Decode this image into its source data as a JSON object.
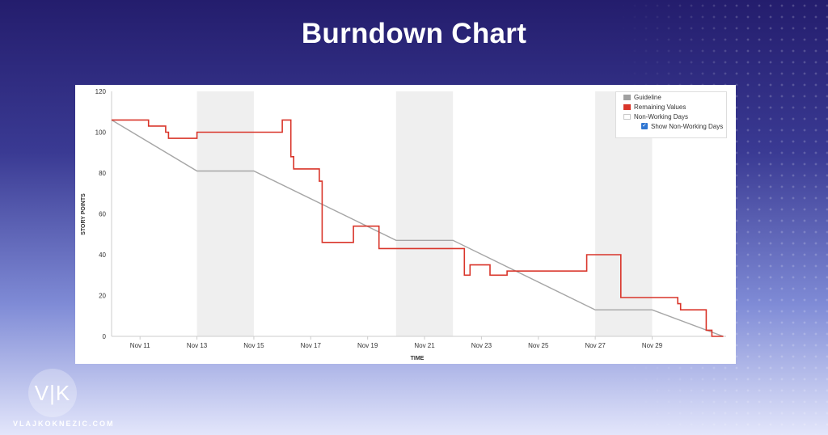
{
  "page": {
    "title": "Burndown Chart"
  },
  "branding": {
    "logo_text": "V|K",
    "site": "VLAJKOKNEZIC.COM"
  },
  "legend": {
    "items": [
      "Guideline",
      "Remaining Values",
      "Non-Working Days"
    ],
    "checkbox_label": "Show Non-Working Days",
    "checkbox_checked": true
  },
  "chart_data": {
    "type": "line",
    "xlabel": "TIME",
    "ylabel": "STORY POINTS",
    "ylim": [
      0,
      120
    ],
    "xlim": [
      10.0,
      31.6
    ],
    "y_ticks": [
      0,
      20,
      40,
      60,
      80,
      100,
      120
    ],
    "x_ticks": [
      {
        "x": 11,
        "label": "Nov 11"
      },
      {
        "x": 13,
        "label": "Nov 13"
      },
      {
        "x": 15,
        "label": "Nov 15"
      },
      {
        "x": 17,
        "label": "Nov 17"
      },
      {
        "x": 19,
        "label": "Nov 19"
      },
      {
        "x": 21,
        "label": "Nov 21"
      },
      {
        "x": 23,
        "label": "Nov 23"
      },
      {
        "x": 25,
        "label": "Nov 25"
      },
      {
        "x": 27,
        "label": "Nov 27"
      },
      {
        "x": 29,
        "label": "Nov 29"
      }
    ],
    "non_working_days": [
      [
        13,
        15
      ],
      [
        20,
        22
      ],
      [
        27,
        29
      ]
    ],
    "colors": {
      "guideline": "#a6a6a6",
      "remaining": "#d9352a",
      "non_working": "#efefef"
    },
    "series": [
      {
        "name": "Guideline",
        "points": [
          [
            10.0,
            106
          ],
          [
            13.0,
            81
          ],
          [
            15.0,
            81
          ],
          [
            20.0,
            47
          ],
          [
            22.0,
            47
          ],
          [
            27.0,
            13
          ],
          [
            29.0,
            13
          ],
          [
            31.5,
            0
          ]
        ]
      },
      {
        "name": "Remaining Values",
        "points": [
          [
            10.0,
            106
          ],
          [
            11.3,
            106
          ],
          [
            11.3,
            103
          ],
          [
            11.9,
            103
          ],
          [
            11.9,
            100
          ],
          [
            12.0,
            100
          ],
          [
            12.0,
            97
          ],
          [
            13.0,
            97
          ],
          [
            13.0,
            100
          ],
          [
            16.0,
            100
          ],
          [
            16.0,
            106
          ],
          [
            16.3,
            106
          ],
          [
            16.3,
            88
          ],
          [
            16.4,
            88
          ],
          [
            16.4,
            82
          ],
          [
            17.3,
            82
          ],
          [
            17.3,
            76
          ],
          [
            17.4,
            76
          ],
          [
            17.4,
            46
          ],
          [
            18.5,
            46
          ],
          [
            18.5,
            54
          ],
          [
            19.4,
            54
          ],
          [
            19.4,
            43
          ],
          [
            22.4,
            43
          ],
          [
            22.4,
            30
          ],
          [
            22.6,
            30
          ],
          [
            22.6,
            35
          ],
          [
            23.3,
            35
          ],
          [
            23.3,
            30
          ],
          [
            23.9,
            30
          ],
          [
            23.9,
            32
          ],
          [
            26.7,
            32
          ],
          [
            26.7,
            40
          ],
          [
            27.9,
            40
          ],
          [
            27.9,
            19
          ],
          [
            29.9,
            19
          ],
          [
            29.9,
            16
          ],
          [
            30.0,
            16
          ],
          [
            30.0,
            13
          ],
          [
            30.9,
            13
          ],
          [
            30.9,
            3
          ],
          [
            31.1,
            3
          ],
          [
            31.1,
            0
          ],
          [
            31.5,
            0
          ]
        ]
      }
    ]
  }
}
